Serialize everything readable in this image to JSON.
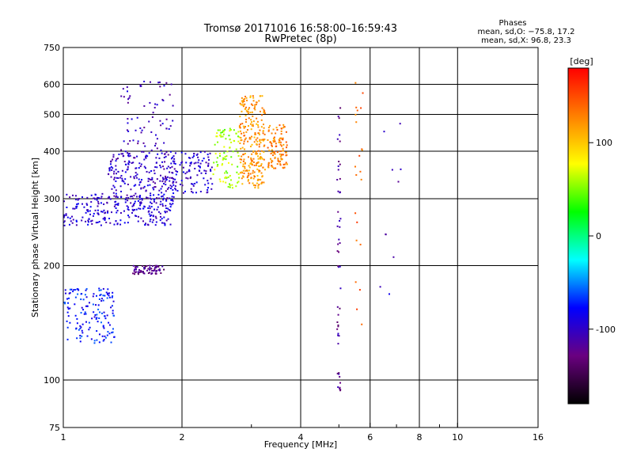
{
  "chart_data": {
    "type": "scatter",
    "title": "Tromsø 20171016 16:58:00–16:59:43",
    "subtitle": "RwPretec (8p)",
    "xlabel": "Frequency [MHz]",
    "ylabel": "Stationary phase Virtual Height [km]",
    "x_scale": "log",
    "y_scale": "log",
    "xlim": [
      1,
      16
    ],
    "ylim": [
      75,
      750
    ],
    "x_ticks": [
      1,
      2,
      4,
      6,
      8,
      10,
      16
    ],
    "y_ticks": [
      75,
      100,
      200,
      300,
      400,
      500,
      600,
      750
    ],
    "grid": true,
    "stats": {
      "heading": "Phases",
      "line1": "mean, sd,O: −75.8, 17.2",
      "line2": "mean, sd,X: 96.8, 23.3"
    },
    "colorbar": {
      "label": "[deg]",
      "range": [
        -180,
        180
      ],
      "ticks": [
        100,
        0,
        -100
      ],
      "colors": [
        "#ff0000",
        "#ff8000",
        "#ffff00",
        "#00ff00",
        "#00ffff",
        "#0000ff",
        "#6a0080",
        "#000000"
      ]
    },
    "series": [
      {
        "clusters": [
          {
            "f0": 1.0,
            "f1": 1.9,
            "h0": 255,
            "h1": 310,
            "phase": -95,
            "n": 260
          },
          {
            "f0": 1.3,
            "f1": 1.95,
            "h0": 300,
            "h1": 400,
            "phase": -100,
            "n": 220
          },
          {
            "f0": 1.4,
            "f1": 1.9,
            "h0": 400,
            "h1": 620,
            "phase": -105,
            "n": 70
          },
          {
            "f0": 1.85,
            "f1": 2.4,
            "h0": 310,
            "h1": 400,
            "phase": -95,
            "n": 110
          },
          {
            "f0": 1.5,
            "f1": 1.8,
            "h0": 190,
            "h1": 200,
            "phase": -125,
            "n": 70
          },
          {
            "f0": 1.0,
            "f1": 1.35,
            "h0": 125,
            "h1": 175,
            "phase": -75,
            "n": 150
          },
          {
            "f0": 2.4,
            "f1": 2.8,
            "h0": 320,
            "h1": 460,
            "phase": 60,
            "n": 90
          },
          {
            "f0": 2.8,
            "f1": 3.25,
            "h0": 320,
            "h1": 560,
            "phase": 120,
            "n": 260
          },
          {
            "f0": 3.3,
            "f1": 3.7,
            "h0": 360,
            "h1": 470,
            "phase": 130,
            "n": 110
          },
          {
            "f0": 4.95,
            "f1": 5.05,
            "h0": 90,
            "h1": 610,
            "phase": -120,
            "n": 50
          },
          {
            "f0": 5.5,
            "f1": 5.75,
            "h0": 125,
            "h1": 630,
            "phase": 140,
            "n": 22
          },
          {
            "f0": 6.2,
            "f1": 7.2,
            "h0": 160,
            "h1": 480,
            "phase": -100,
            "n": 10
          }
        ]
      }
    ]
  }
}
